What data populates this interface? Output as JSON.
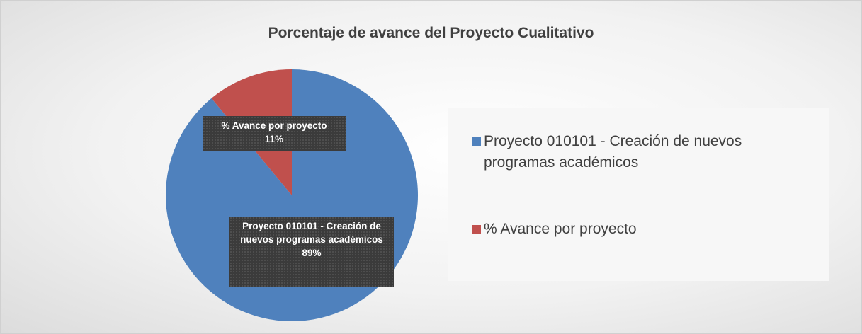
{
  "chart_data": {
    "type": "pie",
    "title": "Porcentaje de avance del Proyecto Cualitativo",
    "categories": [
      "Proyecto 010101 - Creación de nuevos programas académicos",
      "% Avance por proyecto"
    ],
    "values": [
      89,
      11
    ],
    "value_labels": [
      "89%",
      "11%"
    ],
    "colors": [
      "#4f81bd",
      "#c0504d"
    ],
    "legend": "right"
  }
}
